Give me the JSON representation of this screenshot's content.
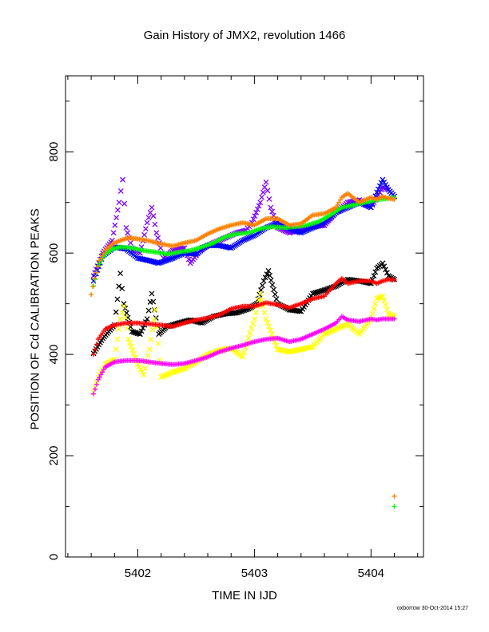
{
  "chart_data": {
    "type": "scatter",
    "title": "Gain History of JMX2, revolution 1466",
    "xlabel": "TIME IN IJD",
    "ylabel": "POSITION OF Cd CALIBRATION PEAKS",
    "xlim": [
      5401.38,
      5404.45
    ],
    "ylim": [
      0,
      950
    ],
    "x_ticks": [
      "5402",
      "5403",
      "5404"
    ],
    "y_ticks": [
      "0",
      "200",
      "400",
      "600",
      "800"
    ],
    "grid": false,
    "series": [
      {
        "color": "#7f00ff",
        "marker": "x",
        "x": [
          5401.62,
          5401.7,
          5401.78,
          5401.84,
          5401.87,
          5401.9,
          5401.95,
          5402.02,
          5402.08,
          5402.12,
          5402.16,
          5402.22,
          5402.3,
          5402.4,
          5402.45,
          5402.55,
          5402.65,
          5402.75,
          5402.85,
          5402.93,
          5402.98,
          5403.05,
          5403.1,
          5403.14,
          5403.2,
          5403.3,
          5403.45,
          5403.6,
          5403.7,
          5403.8,
          5403.9,
          5404.0,
          5404.05,
          5404.1,
          5404.15,
          5404.2
        ],
        "y": [
          555,
          600,
          625,
          700,
          745,
          650,
          610,
          600,
          660,
          690,
          640,
          590,
          605,
          610,
          580,
          610,
          620,
          630,
          640,
          645,
          660,
          700,
          740,
          690,
          650,
          640,
          650,
          655,
          680,
          700,
          705,
          690,
          710,
          730,
          725,
          712
        ]
      },
      {
        "color": "#0000ff",
        "marker": "x",
        "x": [
          5401.62,
          5401.7,
          5401.8,
          5401.9,
          5402.0,
          5402.1,
          5402.18,
          5402.3,
          5402.4,
          5402.5,
          5402.6,
          5402.7,
          5402.8,
          5402.9,
          5403.0,
          5403.1,
          5403.2,
          5403.3,
          5403.4,
          5403.5,
          5403.6,
          5403.7,
          5403.8,
          5403.9,
          5404.0,
          5404.05,
          5404.1,
          5404.15,
          5404.2
        ],
        "y": [
          545,
          595,
          612,
          608,
          590,
          585,
          580,
          590,
          600,
          598,
          615,
          615,
          610,
          625,
          635,
          650,
          660,
          648,
          640,
          650,
          660,
          680,
          690,
          700,
          690,
          720,
          745,
          725,
          712
        ]
      },
      {
        "color": "#00ff00",
        "marker": "+",
        "x": [
          5401.62,
          5401.66,
          5401.72,
          5401.78,
          5401.85,
          5401.95,
          5402.05,
          5402.15,
          5402.25,
          5402.35,
          5402.45,
          5402.55,
          5402.65,
          5402.75,
          5402.85,
          5402.95,
          5403.05,
          5403.15,
          5403.25,
          5403.35,
          5403.45,
          5403.55,
          5403.65,
          5403.75,
          5403.85,
          5403.95,
          5404.05,
          5404.15,
          5404.2
        ],
        "y": [
          535,
          575,
          598,
          608,
          612,
          610,
          605,
          602,
          598,
          602,
          605,
          612,
          620,
          632,
          638,
          640,
          648,
          652,
          650,
          652,
          655,
          662,
          675,
          690,
          695,
          700,
          705,
          708,
          710
        ]
      },
      {
        "color": "#ff8000",
        "marker": "+",
        "x": [
          5401.6,
          5401.63,
          5401.67,
          5401.72,
          5401.78,
          5401.85,
          5401.92,
          5402.0,
          5402.1,
          5402.2,
          5402.3,
          5402.4,
          5402.5,
          5402.6,
          5402.7,
          5402.8,
          5402.9,
          5403.0,
          5403.1,
          5403.2,
          5403.3,
          5403.4,
          5403.5,
          5403.6,
          5403.7,
          5403.75,
          5403.8,
          5403.9,
          5404.0,
          5404.05,
          5404.1,
          5404.15,
          5404.2
        ],
        "y": [
          518,
          550,
          585,
          605,
          618,
          625,
          630,
          628,
          624,
          618,
          614,
          620,
          625,
          638,
          648,
          655,
          660,
          655,
          668,
          668,
          655,
          658,
          675,
          678,
          690,
          710,
          718,
          700,
          710,
          706,
          712,
          708,
          706
        ]
      },
      {
        "color": "#000000",
        "marker": "x",
        "x": [
          5401.62,
          5401.7,
          5401.8,
          5401.85,
          5401.88,
          5401.95,
          5402.02,
          5402.08,
          5402.12,
          5402.18,
          5402.25,
          5402.35,
          5402.45,
          5402.55,
          5402.65,
          5402.75,
          5402.85,
          5402.95,
          5403.02,
          5403.08,
          5403.12,
          5403.2,
          5403.3,
          5403.4,
          5403.5,
          5403.6,
          5403.7,
          5403.8,
          5403.9,
          5404.0,
          5404.05,
          5404.1,
          5404.15,
          5404.2
        ],
        "y": [
          402,
          432,
          458,
          560,
          500,
          445,
          440,
          470,
          520,
          440,
          455,
          462,
          468,
          462,
          475,
          480,
          482,
          490,
          500,
          545,
          565,
          500,
          488,
          485,
          520,
          527,
          535,
          548,
          545,
          540,
          570,
          580,
          555,
          548
        ]
      },
      {
        "color": "#ffff00",
        "marker": "x",
        "x": [
          5401.62,
          5401.66,
          5401.72,
          5401.8,
          5401.85,
          5401.88,
          5401.92,
          5402.0,
          5402.05,
          5402.1,
          5402.15,
          5402.2,
          5402.3,
          5402.4,
          5402.5,
          5402.6,
          5402.7,
          5402.8,
          5402.9,
          5403.0,
          5403.05,
          5403.1,
          5403.15,
          5403.2,
          5403.3,
          5403.4,
          5403.5,
          5403.6,
          5403.7,
          5403.8,
          5403.9,
          5404.0,
          5404.05,
          5404.1,
          5404.15,
          5404.2
        ],
        "y": [
          325,
          355,
          380,
          390,
          470,
          495,
          430,
          380,
          360,
          410,
          488,
          355,
          365,
          372,
          385,
          400,
          408,
          412,
          395,
          470,
          520,
          470,
          440,
          410,
          405,
          410,
          415,
          440,
          450,
          460,
          440,
          470,
          510,
          515,
          480,
          475
        ]
      },
      {
        "color": "#ff0000",
        "marker": "+",
        "x": [
          5401.62,
          5401.66,
          5401.72,
          5401.8,
          5401.9,
          5402.0,
          5402.1,
          5402.2,
          5402.3,
          5402.4,
          5402.5,
          5402.6,
          5402.7,
          5402.8,
          5402.9,
          5403.0,
          5403.1,
          5403.2,
          5403.3,
          5403.4,
          5403.5,
          5403.6,
          5403.7,
          5403.75,
          5403.8,
          5403.9,
          5404.0,
          5404.05,
          5404.1,
          5404.15,
          5404.2
        ],
        "y": [
          400,
          430,
          450,
          458,
          462,
          462,
          460,
          458,
          455,
          462,
          468,
          472,
          478,
          490,
          495,
          495,
          502,
          498,
          492,
          500,
          510,
          515,
          540,
          550,
          540,
          545,
          545,
          540,
          545,
          548,
          547
        ]
      },
      {
        "color": "#ff00ff",
        "marker": "+",
        "x": [
          5401.62,
          5401.66,
          5401.72,
          5401.8,
          5401.9,
          5402.0,
          5402.1,
          5402.2,
          5402.3,
          5402.4,
          5402.5,
          5402.6,
          5402.7,
          5402.8,
          5402.9,
          5403.0,
          5403.1,
          5403.2,
          5403.3,
          5403.4,
          5403.5,
          5403.6,
          5403.7,
          5403.75,
          5403.8,
          5403.9,
          5404.0,
          5404.05,
          5404.1,
          5404.15,
          5404.2
        ],
        "y": [
          322,
          350,
          375,
          385,
          388,
          388,
          385,
          382,
          380,
          382,
          388,
          395,
          405,
          412,
          418,
          425,
          430,
          432,
          425,
          430,
          440,
          450,
          462,
          475,
          468,
          465,
          470,
          468,
          470,
          470,
          470
        ]
      },
      {
        "color": "#ff8000",
        "marker": "+",
        "x": [
          5404.2
        ],
        "y": [
          120
        ]
      },
      {
        "color": "#00ff00",
        "marker": "+",
        "x": [
          5404.2
        ],
        "y": [
          100
        ]
      }
    ]
  },
  "footer": "oxborrow 30-Oct-2014 15:27"
}
